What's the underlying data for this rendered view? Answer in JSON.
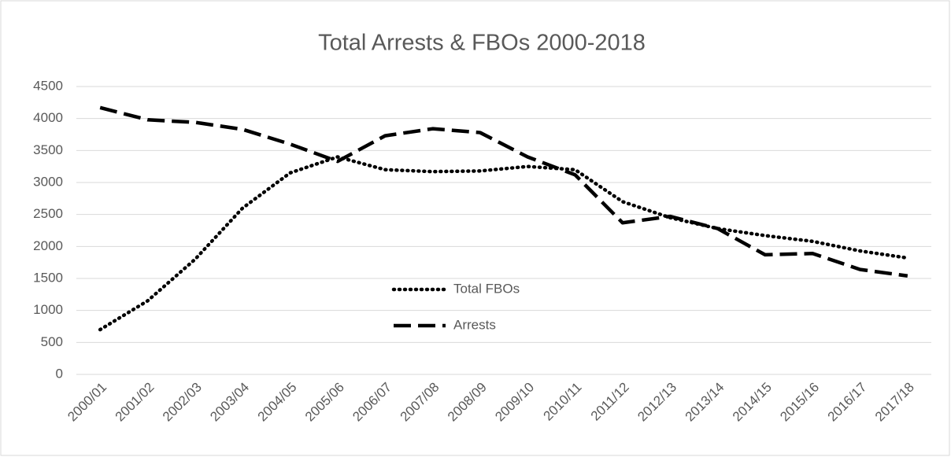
{
  "chart_data": {
    "type": "line",
    "title": "Total Arrests & FBOs 2000-2018",
    "categories": [
      "2000/01",
      "2001/02",
      "2002/03",
      "2003/04",
      "2004/05",
      "2005/06",
      "2006/07",
      "2007/08",
      "2008/09",
      "2009/10",
      "2010/11",
      "2011/12",
      "2012/13",
      "2013/14",
      "2014/15",
      "2015/16",
      "2016/17",
      "2017/18"
    ],
    "series": [
      {
        "name": "Total FBOs",
        "color": "#000000",
        "dash": "dotted",
        "values": [
          700,
          1150,
          1800,
          2600,
          3150,
          3400,
          3200,
          3170,
          3180,
          3250,
          3200,
          2700,
          2450,
          2280,
          2170,
          2080,
          1930,
          1820
        ]
      },
      {
        "name": "Arrests",
        "color": "#000000",
        "dash": "dashed",
        "values": [
          4170,
          3980,
          3940,
          3830,
          3600,
          3330,
          3730,
          3840,
          3780,
          3400,
          3120,
          2370,
          2470,
          2280,
          1870,
          1890,
          1640,
          1540
        ]
      }
    ],
    "ylim": [
      0,
      4500
    ],
    "yticks": [
      0,
      500,
      1000,
      1500,
      2000,
      2500,
      3000,
      3500,
      4000,
      4500
    ],
    "grid": true,
    "legend": "center"
  }
}
